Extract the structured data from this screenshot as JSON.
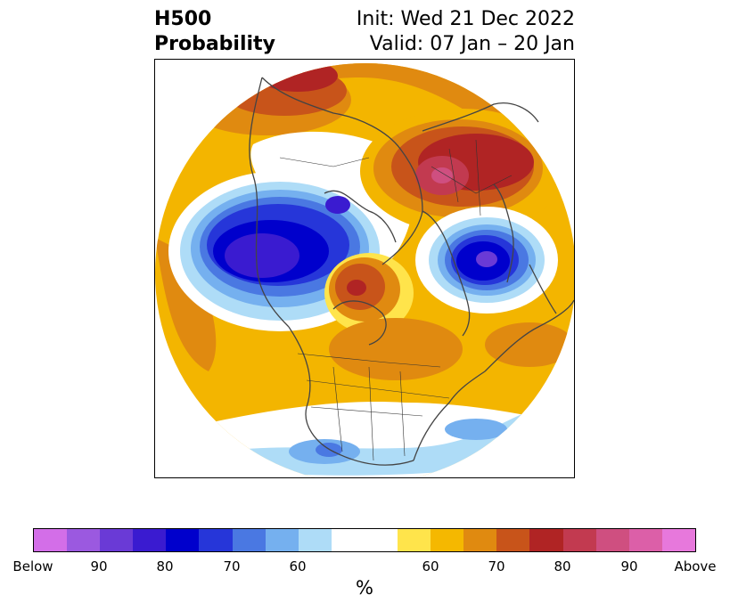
{
  "title": {
    "left_line1": "H500",
    "left_line2": "Probability",
    "right_line1": "Init: Wed 21 Dec 2022",
    "right_line2": "Valid: 07 Jan – 20 Jan"
  },
  "map": {
    "projection": "north polar stereographic",
    "region": "Northern Hemisphere",
    "features": [
      "coastlines",
      "country borders",
      "US state borders",
      "Canadian province borders"
    ]
  },
  "colorbar": {
    "segments": [
      {
        "color": "#d36ee8",
        "category": "below"
      },
      {
        "color": "#9b59e0",
        "category": "below"
      },
      {
        "color": "#6a3ad6",
        "category": "below"
      },
      {
        "color": "#3a1bd0",
        "category": "below"
      },
      {
        "color": "#0000cc",
        "category": "below"
      },
      {
        "color": "#2636d9",
        "category": "below"
      },
      {
        "color": "#4a78e2",
        "category": "below"
      },
      {
        "color": "#75b0ef",
        "category": "below"
      },
      {
        "color": "#aedcf7",
        "category": "below"
      },
      {
        "color": "#ffffff",
        "category": "neutral"
      },
      {
        "color": "#ffe44b",
        "category": "above"
      },
      {
        "color": "#f5b800",
        "category": "above"
      },
      {
        "color": "#e08a10",
        "category": "above"
      },
      {
        "color": "#c8541a",
        "category": "above"
      },
      {
        "color": "#b02424",
        "category": "above"
      },
      {
        "color": "#c23a50",
        "category": "above"
      },
      {
        "color": "#cf4f80",
        "category": "above"
      },
      {
        "color": "#dc5fa8",
        "category": "above"
      },
      {
        "color": "#e778dc",
        "category": "above"
      }
    ],
    "tick_labels": [
      "Below",
      "90",
      "80",
      "70",
      "60",
      "60",
      "70",
      "80",
      "90",
      "Above"
    ],
    "unit_label": "%"
  }
}
